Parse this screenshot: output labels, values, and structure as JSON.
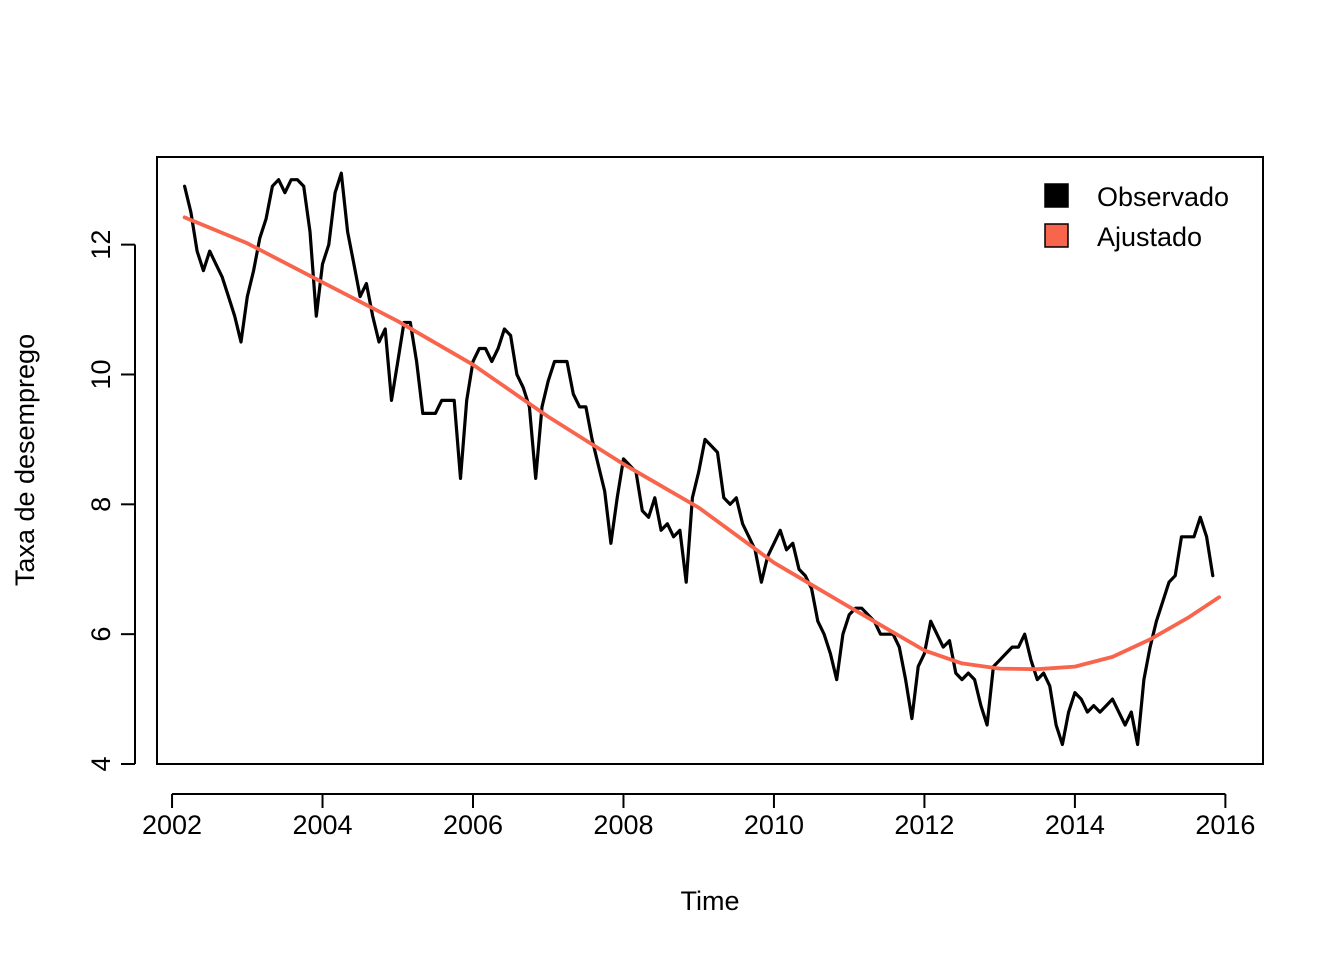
{
  "chart_data": {
    "type": "line",
    "title": "",
    "xlabel": "Time",
    "ylabel": "Taxa de desemprego",
    "xlim": [
      2001.8,
      2016.5
    ],
    "ylim": [
      4,
      13.35
    ],
    "x_ticks": [
      2002,
      2004,
      2006,
      2008,
      2010,
      2012,
      2014,
      2016
    ],
    "x_tick_labels": [
      "2002",
      "2004",
      "2006",
      "2008",
      "2010",
      "2012",
      "2014",
      "2016"
    ],
    "y_ticks": [
      4,
      6,
      8,
      10,
      12
    ],
    "y_tick_labels": [
      "4",
      "6",
      "8",
      "10",
      "12"
    ],
    "grid": false,
    "legend": {
      "position": "top-right"
    },
    "x_start": 2002.1667,
    "x_step": 0.083333,
    "series": [
      {
        "name": "Observado",
        "color": "#000000",
        "values": [
          12.9,
          12.5,
          11.9,
          11.6,
          11.9,
          11.7,
          11.5,
          11.2,
          10.9,
          10.5,
          11.2,
          11.6,
          12.1,
          12.4,
          12.9,
          13.0,
          12.8,
          13.0,
          13.0,
          12.9,
          12.2,
          10.9,
          11.7,
          12.0,
          12.8,
          13.1,
          12.2,
          11.7,
          11.2,
          11.4,
          10.9,
          10.5,
          10.7,
          9.6,
          10.2,
          10.8,
          10.8,
          10.2,
          9.4,
          9.4,
          9.4,
          9.6,
          9.6,
          9.6,
          8.4,
          9.6,
          10.2,
          10.4,
          10.4,
          10.2,
          10.4,
          10.7,
          10.6,
          10.0,
          9.8,
          9.5,
          8.4,
          9.5,
          9.9,
          10.2,
          10.2,
          10.2,
          9.7,
          9.5,
          9.5,
          9.0,
          8.6,
          8.2,
          7.4,
          8.1,
          8.7,
          8.6,
          8.5,
          7.9,
          7.8,
          8.1,
          7.6,
          7.7,
          7.5,
          7.6,
          6.8,
          8.1,
          8.5,
          9.0,
          8.9,
          8.8,
          8.1,
          8.0,
          8.1,
          7.7,
          7.5,
          7.3,
          6.8,
          7.2,
          7.4,
          7.6,
          7.3,
          7.4,
          7.0,
          6.9,
          6.7,
          6.2,
          6.0,
          5.7,
          5.3,
          6.0,
          6.3,
          6.4,
          6.4,
          6.3,
          6.2,
          6.0,
          6.0,
          6.0,
          5.8,
          5.3,
          4.7,
          5.5,
          5.7,
          6.2,
          6.0,
          5.8,
          5.9,
          5.4,
          5.3,
          5.4,
          5.3,
          4.9,
          4.6,
          5.5,
          5.6,
          5.7,
          5.8,
          5.8,
          6.0,
          5.6,
          5.3,
          5.4,
          5.2,
          4.6,
          4.3,
          4.8,
          5.1,
          5.0,
          4.8,
          4.9,
          4.8,
          4.9,
          5.0,
          4.8,
          4.6,
          4.8,
          4.3,
          5.3,
          5.8,
          6.2,
          6.5,
          6.8,
          6.9,
          7.5,
          7.5,
          7.5,
          7.8,
          7.5,
          6.9
        ]
      },
      {
        "name": "Ajustado",
        "color": "#f8644c",
        "x": [
          2002.1667,
          2003,
          2004,
          2005,
          2006,
          2007,
          2008,
          2009,
          2010,
          2011,
          2012,
          2012.5,
          2013,
          2013.5,
          2014,
          2014.5,
          2015,
          2015.5,
          2015.9167
        ],
        "values": [
          12.42,
          12.02,
          11.42,
          10.82,
          10.15,
          9.35,
          8.62,
          7.95,
          7.1,
          6.42,
          5.75,
          5.55,
          5.47,
          5.46,
          5.5,
          5.65,
          5.92,
          6.25,
          6.57
        ]
      }
    ]
  }
}
